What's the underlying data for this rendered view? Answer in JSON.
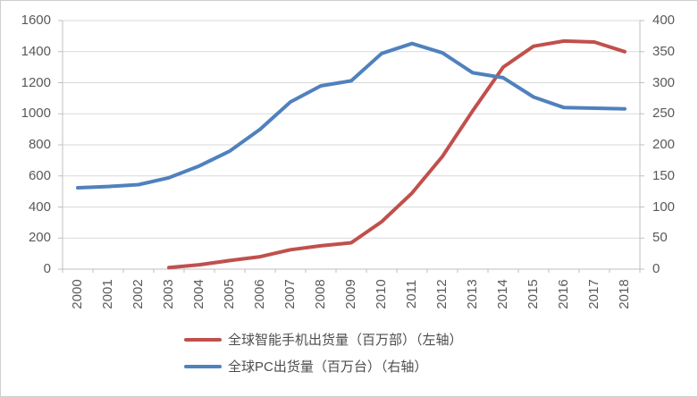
{
  "chart_data": {
    "type": "line",
    "title": "",
    "x": [
      "2000",
      "2001",
      "2002",
      "2003",
      "2004",
      "2005",
      "2006",
      "2007",
      "2008",
      "2009",
      "2010",
      "2011",
      "2012",
      "2013",
      "2014",
      "2015",
      "2016",
      "2017",
      "2018"
    ],
    "series": [
      {
        "name": "全球智能手机出货量（百万部）（左轴）",
        "axis": "left",
        "color": "#c0504d",
        "values": [
          null,
          null,
          null,
          10,
          28,
          55,
          80,
          125,
          150,
          170,
          305,
          490,
          725,
          1020,
          1300,
          1435,
          1468,
          1462,
          1400
        ]
      },
      {
        "name": "全球PC出货量（百万台）（右轴）",
        "axis": "right",
        "color": "#4f81bd",
        "values": [
          131,
          133,
          136,
          147,
          166,
          190,
          225,
          269,
          295,
          303,
          347,
          363,
          348,
          316,
          308,
          277,
          260,
          259,
          258
        ]
      }
    ],
    "left_axis": {
      "min": 0,
      "max": 1600,
      "step": 200,
      "ticks": [
        "0",
        "200",
        "400",
        "600",
        "800",
        "1000",
        "1200",
        "1400",
        "1600"
      ]
    },
    "right_axis": {
      "min": 0,
      "max": 400,
      "step": 50,
      "ticks": [
        "0",
        "50",
        "100",
        "150",
        "200",
        "250",
        "300",
        "350",
        "400"
      ]
    },
    "grid": true,
    "legend_position": "bottom",
    "colors": {
      "grid": "#d9d9d9",
      "axis": "#bfbfbf",
      "tick_label": "#595959",
      "background": "#ffffff"
    }
  }
}
